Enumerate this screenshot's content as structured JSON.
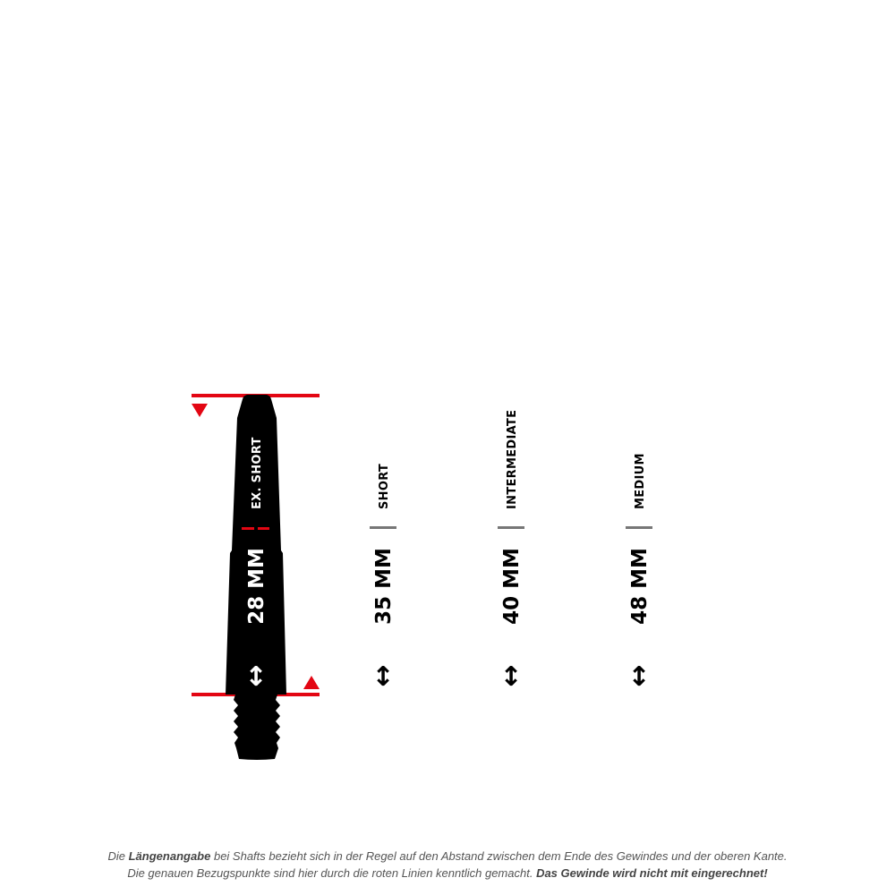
{
  "colors": {
    "accent_red": "#e30613",
    "shaft": "#000000",
    "marker_gray": "#777777",
    "note_text": "#555555"
  },
  "shaft": {
    "label": "EX. SHORT",
    "length": "28 MM",
    "arrow_icon": "up-down-arrow-icon"
  },
  "columns": [
    {
      "label": "SHORT",
      "length": "35 MM"
    },
    {
      "label": "INTERMEDIATE",
      "length": "40 MM"
    },
    {
      "label": "MEDIUM",
      "length": "48 MM"
    }
  ],
  "note": {
    "line1_pre": "Die ",
    "line1_bold": "Längenangabe",
    "line1_post": " bei Shafts bezieht sich in der Regel auf den Abstand zwischen dem Ende des Gewindes und der oberen Kante.",
    "line2_pre": "Die genauen Bezugspunkte sind hier durch die roten Linien kenntlich gemacht. ",
    "line2_bold": "Das Gewinde wird nicht mit eingerechnet!"
  }
}
